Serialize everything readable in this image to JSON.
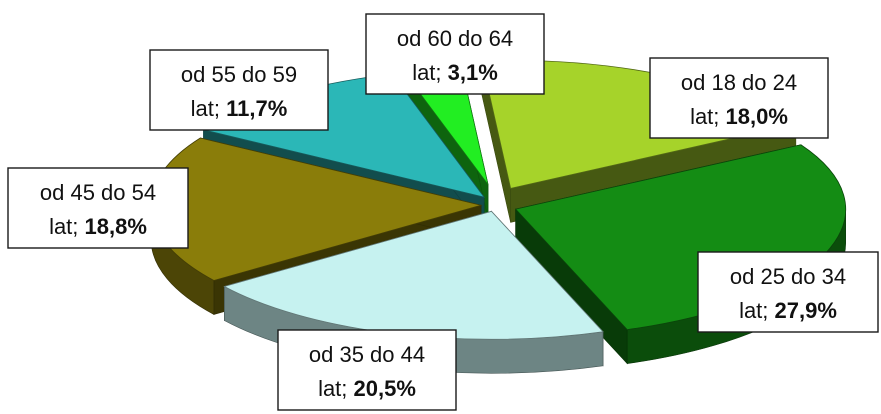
{
  "chart_data": {
    "type": "pie",
    "style": "exploded 3D pie",
    "title": "",
    "slices": [
      {
        "label": "od 18 do 24 lat",
        "line1": "od 18 do 24",
        "line2_prefix": "lat; ",
        "value_text": "18,0%",
        "value": 18.0,
        "color": "#a6d32a"
      },
      {
        "label": "od 25 do 34 lat",
        "line1": "od 25 do 34",
        "line2_prefix": "lat; ",
        "value_text": "27,9%",
        "value": 27.9,
        "color": "#148c14"
      },
      {
        "label": "od 35 do 44 lat",
        "line1": "od 35 do 44",
        "line2_prefix": "lat; ",
        "value_text": "20,5%",
        "value": 20.5,
        "color": "#c6f2f0"
      },
      {
        "label": "od 45 do 54 lat",
        "line1": "od 45 do 54",
        "line2_prefix": "lat; ",
        "value_text": "18,8%",
        "value": 18.8,
        "color": "#8a7d0a"
      },
      {
        "label": "od 55 do 59 lat",
        "line1": "od 55 do 59",
        "line2_prefix": "lat; ",
        "value_text": "11,7%",
        "value": 11.7,
        "color": "#2bb7b7"
      },
      {
        "label": "od 60 do 64 lat",
        "line1": "od 60 do 64",
        "line2_prefix": "lat; ",
        "value_text": "3,1%",
        "value": 3.1,
        "color": "#22ee22"
      }
    ]
  }
}
